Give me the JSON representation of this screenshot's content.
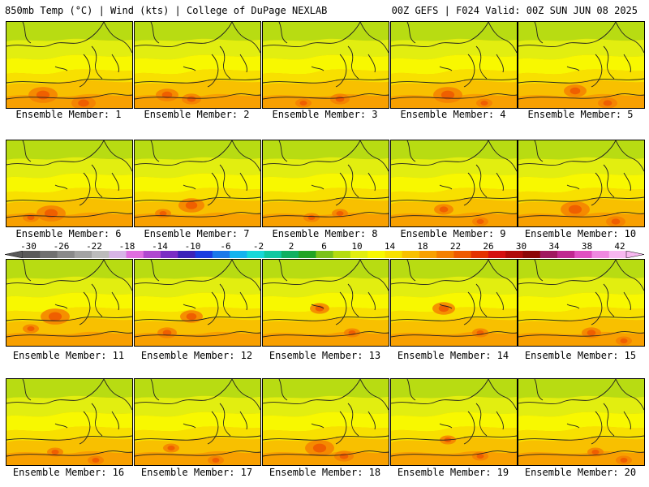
{
  "header": {
    "left_title": "850mb Temp (°C) | Wind (kts) | College of DuPage NEXLAB",
    "right_title": "00Z GEFS | F024 Valid: 00Z SUN JUN 08 2025"
  },
  "colorbar": {
    "labels": [
      "-30",
      "-26",
      "-22",
      "-18",
      "-14",
      "-10",
      "-6",
      "-2",
      "2",
      "6",
      "10",
      "14",
      "18",
      "22",
      "26",
      "30",
      "34",
      "38",
      "42"
    ],
    "colors": [
      "#5a5a5a",
      "#707070",
      "#8a8a8a",
      "#a3a3a3",
      "#bcbcbc",
      "#d7b4e6",
      "#e06ee0",
      "#b048d0",
      "#7a2ec4",
      "#3c22b8",
      "#1a3ce0",
      "#1a78ea",
      "#14b4ee",
      "#18d8d8",
      "#10c8a0",
      "#10b060",
      "#22a424",
      "#7ac21a",
      "#b4dc10",
      "#e2ee10",
      "#f8f800",
      "#f8e000",
      "#f8c000",
      "#f8a000",
      "#f48000",
      "#ee5a00",
      "#e43200",
      "#d41010",
      "#b00a0a",
      "#8c0606",
      "#a01860",
      "#c02890",
      "#e050c0",
      "#f088e0",
      "#f8b8f0"
    ]
  },
  "members": [
    {
      "label": "Ensemble Member: 1",
      "hot": [
        [
          45,
          90,
          18
        ],
        [
          95,
          100,
          15
        ]
      ]
    },
    {
      "label": "Ensemble Member: 2",
      "hot": [
        [
          40,
          90,
          14
        ],
        [
          70,
          95,
          12
        ]
      ]
    },
    {
      "label": "Ensemble Member: 3",
      "hot": [
        [
          95,
          95,
          12
        ],
        [
          50,
          100,
          10
        ]
      ]
    },
    {
      "label": "Ensemble Member: 4",
      "hot": [
        [
          70,
          90,
          18
        ],
        [
          115,
          100,
          10
        ]
      ]
    },
    {
      "label": "Ensemble Member: 5",
      "hot": [
        [
          70,
          85,
          14
        ],
        [
          110,
          100,
          12
        ]
      ]
    },
    {
      "label": "Ensemble Member: 6",
      "hot": [
        [
          55,
          90,
          18
        ],
        [
          30,
          95,
          10
        ]
      ]
    },
    {
      "label": "Ensemble Member: 7",
      "hot": [
        [
          70,
          80,
          16
        ],
        [
          35,
          90,
          10
        ]
      ]
    },
    {
      "label": "Ensemble Member: 8",
      "hot": [
        [
          95,
          90,
          10
        ],
        [
          60,
          95,
          10
        ]
      ]
    },
    {
      "label": "Ensemble Member: 9",
      "hot": [
        [
          65,
          85,
          12
        ],
        [
          110,
          100,
          10
        ]
      ]
    },
    {
      "label": "Ensemble Member: 10",
      "hot": [
        [
          70,
          85,
          18
        ],
        [
          120,
          100,
          12
        ]
      ]
    },
    {
      "label": "Ensemble Member: 11",
      "hot": [
        [
          60,
          70,
          18
        ],
        [
          30,
          85,
          10
        ]
      ]
    },
    {
      "label": "Ensemble Member: 12",
      "hot": [
        [
          70,
          70,
          14
        ],
        [
          40,
          90,
          12
        ]
      ]
    },
    {
      "label": "Ensemble Member: 13",
      "hot": [
        [
          70,
          60,
          12
        ],
        [
          110,
          90,
          10
        ]
      ]
    },
    {
      "label": "Ensemble Member: 14",
      "hot": [
        [
          65,
          60,
          14
        ],
        [
          110,
          90,
          10
        ]
      ]
    },
    {
      "label": "Ensemble Member: 15",
      "hot": [
        [
          90,
          90,
          12
        ],
        [
          130,
          100,
          10
        ]
      ]
    },
    {
      "label": "Ensemble Member: 16",
      "hot": [
        [
          60,
          90,
          10
        ],
        [
          110,
          100,
          10
        ]
      ]
    },
    {
      "label": "Ensemble Member: 17",
      "hot": [
        [
          45,
          85,
          10
        ],
        [
          100,
          100,
          10
        ]
      ]
    },
    {
      "label": "Ensemble Member: 18",
      "hot": [
        [
          70,
          85,
          18
        ],
        [
          100,
          95,
          12
        ]
      ]
    },
    {
      "label": "Ensemble Member: 19",
      "hot": [
        [
          70,
          75,
          10
        ],
        [
          110,
          95,
          10
        ]
      ]
    },
    {
      "label": "Ensemble Member: 20",
      "hot": [
        [
          95,
          90,
          10
        ],
        [
          130,
          100,
          10
        ]
      ]
    }
  ]
}
